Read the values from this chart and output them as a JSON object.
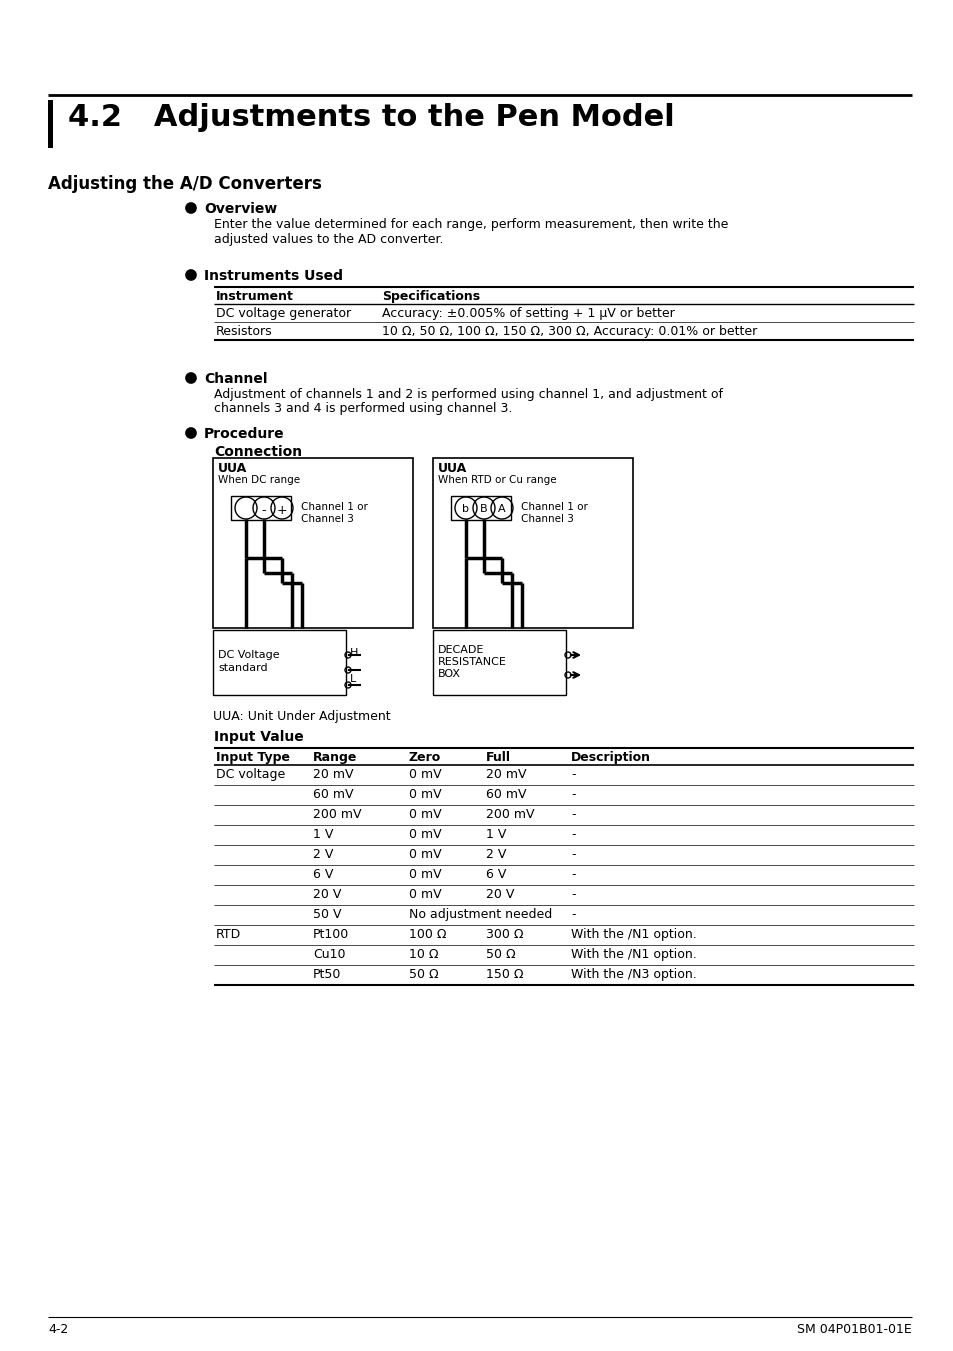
{
  "title": "4.2   Adjustments to the Pen Model",
  "section_title": "Adjusting the A/D Converters",
  "overview_header": "Overview",
  "overview_text1": "Enter the value determined for each range, perform measurement, then write the",
  "overview_text2": "adjusted values to the AD converter.",
  "instruments_header": "Instruments Used",
  "inst_col1": "Instrument",
  "inst_col2": "Specifications",
  "inst_row1_col1": "DC voltage generator",
  "inst_row1_col2": "Accuracy: ±0.005% of setting + 1 μV or better",
  "inst_row2_col1": "Resistors",
  "inst_row2_col2": "10 Ω, 50 Ω, 100 Ω, 150 Ω, 300 Ω, Accuracy: 0.01% or better",
  "channel_header": "Channel",
  "channel_text1": "Adjustment of channels 1 and 2 is performed using channel 1, and adjustment of",
  "channel_text2": "channels 3 and 4 is performed using channel 3.",
  "procedure_header": "Procedure",
  "connection_header": "Connection",
  "lbox_title": "UUA",
  "lbox_subtitle": "When DC range",
  "lbox_label1": "Channel 1 or",
  "lbox_label2": "Channel 3",
  "rbox_title": "UUA",
  "rbox_subtitle": "When RTD or Cu range",
  "rbox_label1": "Channel 1 or",
  "rbox_label2": "Channel 3",
  "sbox_line1": "DC Voltage",
  "sbox_line2": "standard",
  "sbox_H": "H",
  "sbox_L": "L",
  "drbox_line1": "DECADE",
  "drbox_line2": "RESISTANCE",
  "drbox_line3": "BOX",
  "uua_note": "UUA: Unit Under Adjustment",
  "input_value_header": "Input Value",
  "input_table_headers": [
    "Input Type",
    "Range",
    "Zero",
    "Full",
    "Description"
  ],
  "input_table_rows": [
    [
      "DC voltage",
      "20 mV",
      "0 mV",
      "20 mV",
      "-"
    ],
    [
      "",
      "60 mV",
      "0 mV",
      "60 mV",
      "-"
    ],
    [
      "",
      "200 mV",
      "0 mV",
      "200 mV",
      "-"
    ],
    [
      "",
      "1 V",
      "0 mV",
      "1 V",
      "-"
    ],
    [
      "",
      "2 V",
      "0 mV",
      "2 V",
      "-"
    ],
    [
      "",
      "6 V",
      "0 mV",
      "6 V",
      "-"
    ],
    [
      "",
      "20 V",
      "0 mV",
      "20 V",
      "-"
    ],
    [
      "",
      "50 V",
      "No adjustment needed",
      "",
      "-"
    ],
    [
      "RTD",
      "Pt100",
      "100 Ω",
      "300 Ω",
      "With the /N1 option."
    ],
    [
      "",
      "Cu10",
      "10 Ω",
      "50 Ω",
      "With the /N1 option."
    ],
    [
      "",
      "Pt50",
      "50 Ω",
      "150 Ω",
      "With the /N3 option."
    ]
  ],
  "footer_left": "4-2",
  "footer_right": "SM 04P01B01-01E"
}
